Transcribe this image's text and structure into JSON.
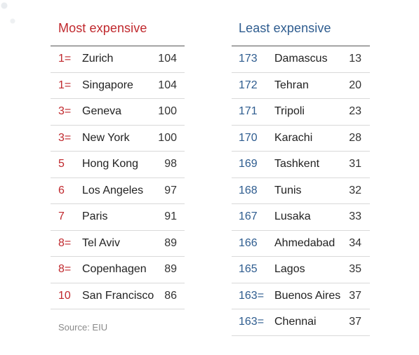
{
  "most_expensive": {
    "title": "Most expensive",
    "rows": [
      {
        "rank": "1=",
        "city": "Zurich",
        "index": "104"
      },
      {
        "rank": "1=",
        "city": "Singapore",
        "index": "104"
      },
      {
        "rank": "3=",
        "city": "Geneva",
        "index": "100"
      },
      {
        "rank": "3=",
        "city": "New York",
        "index": "100"
      },
      {
        "rank": "5",
        "city": "Hong Kong",
        "index": "98"
      },
      {
        "rank": "6",
        "city": "Los Angeles",
        "index": "97"
      },
      {
        "rank": "7",
        "city": "Paris",
        "index": "91"
      },
      {
        "rank": "8=",
        "city": "Tel Aviv",
        "index": "89"
      },
      {
        "rank": "8=",
        "city": "Copenhagen",
        "index": "89"
      },
      {
        "rank": "10",
        "city": "San Francisco",
        "index": "86"
      }
    ]
  },
  "least_expensive": {
    "title": "Least expensive",
    "rows": [
      {
        "rank": "173",
        "city": "Damascus",
        "index": "13"
      },
      {
        "rank": "172",
        "city": "Tehran",
        "index": "20"
      },
      {
        "rank": "171",
        "city": "Tripoli",
        "index": "23"
      },
      {
        "rank": "170",
        "city": "Karachi",
        "index": "28"
      },
      {
        "rank": "169",
        "city": "Tashkent",
        "index": "31"
      },
      {
        "rank": "168",
        "city": "Tunis",
        "index": "32"
      },
      {
        "rank": "167",
        "city": "Lusaka",
        "index": "33"
      },
      {
        "rank": "166",
        "city": "Ahmedabad",
        "index": "34"
      },
      {
        "rank": "165",
        "city": "Lagos",
        "index": "35"
      },
      {
        "rank": "163=",
        "city": "Buenos Aires",
        "index": "37"
      },
      {
        "rank": "163=",
        "city": "Chennai",
        "index": "37"
      }
    ]
  },
  "source": "Source: EIU",
  "colors": {
    "most_accent": "#c0282d",
    "least_accent": "#2e5c8f"
  }
}
